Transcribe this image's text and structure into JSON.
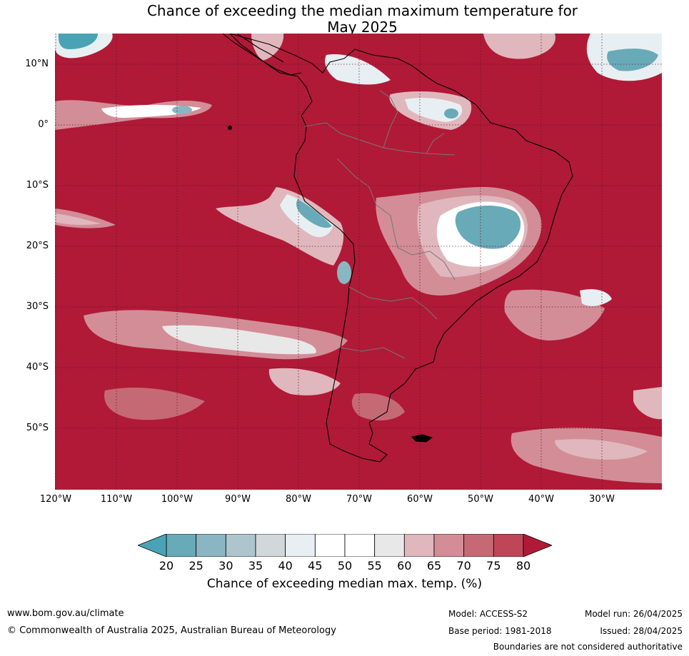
{
  "title": {
    "line1": "Chance of exceeding the median maximum temperature for",
    "line2": "May 2025"
  },
  "map": {
    "latitude_labels": [
      "10°N",
      "0°",
      "10°S",
      "20°S",
      "30°S",
      "40°S",
      "50°S"
    ],
    "longitude_labels": [
      "120°W",
      "110°W",
      "100°W",
      "90°W",
      "80°W",
      "70°W",
      "60°W",
      "50°W",
      "40°W",
      "30°W"
    ],
    "colors": {
      "above_80": "#b01a37",
      "sea_dominant": "#b01a37",
      "gridline": "#5a1020",
      "coastline": "#000000",
      "border": "#777777"
    }
  },
  "colorbar": {
    "ticks": [
      "20",
      "25",
      "30",
      "35",
      "40",
      "45",
      "50",
      "55",
      "60",
      "65",
      "70",
      "75",
      "80"
    ],
    "bin_colors": [
      "#69aab8",
      "#8ab6c3",
      "#adc6cd",
      "#d2d8da",
      "#e8eff2",
      "#ffffff",
      "#ffffff",
      "#e8e8e8",
      "#e0b7bd",
      "#d38d97",
      "#c56a75",
      "#bf4657"
    ],
    "below_color": "#4aa3b5",
    "above_color": "#b01a37",
    "label": "Chance of exceeding median max. temp. (%)"
  },
  "footer": {
    "website": "www.bom.gov.au/climate",
    "copyright": "© Commonwealth of Australia 2025, Australian Bureau of Meteorology",
    "model": "Model: ACCESS-S2",
    "base_period": "Base period: 1981-2018",
    "model_run": "Model run: 26/04/2025",
    "issued": "Issued: 28/04/2025",
    "disclaimer": "Boundaries are not considered authoritative"
  }
}
